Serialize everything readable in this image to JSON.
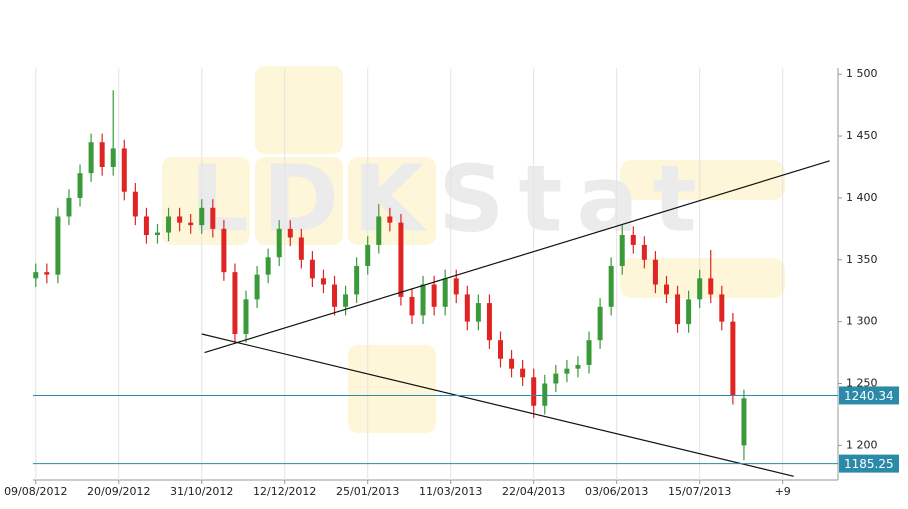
{
  "chart_data": {
    "type": "candlestick",
    "watermark": "LDKStat",
    "up_color": "#3a9a3a",
    "down_color": "#e02424",
    "grid": true,
    "xlim": [
      -1,
      290
    ],
    "ylim": [
      1172,
      1505
    ],
    "xticks": [
      {
        "value": 0,
        "label": "09/08/2012"
      },
      {
        "value": 30,
        "label": "20/09/2012"
      },
      {
        "value": 60,
        "label": "31/10/2012"
      },
      {
        "value": 90,
        "label": "12/12/2012"
      },
      {
        "value": 120,
        "label": "25/01/2013"
      },
      {
        "value": 150,
        "label": "11/03/2013"
      },
      {
        "value": 180,
        "label": "22/04/2013"
      },
      {
        "value": 210,
        "label": "03/06/2013"
      },
      {
        "value": 240,
        "label": "15/07/2013"
      },
      {
        "value": 270,
        "label": "+9"
      }
    ],
    "yticks": [
      {
        "value": 1200,
        "label": "1 200"
      },
      {
        "value": 1250,
        "label": "1 250"
      },
      {
        "value": 1300,
        "label": "1 300"
      },
      {
        "value": 1350,
        "label": "1 350"
      },
      {
        "value": 1400,
        "label": "1 400"
      },
      {
        "value": 1450,
        "label": "1 450"
      },
      {
        "value": 1500,
        "label": "1 500"
      }
    ],
    "x": [
      0,
      4,
      8,
      12,
      16,
      20,
      24,
      28,
      32,
      36,
      40,
      44,
      48,
      52,
      56,
      60,
      64,
      68,
      72,
      76,
      80,
      84,
      88,
      92,
      96,
      100,
      104,
      108,
      112,
      116,
      120,
      124,
      128,
      132,
      136,
      140,
      144,
      148,
      152,
      156,
      160,
      164,
      168,
      172,
      176,
      180,
      184,
      188,
      192,
      196,
      200,
      204,
      208,
      212,
      216,
      220,
      224,
      228,
      232,
      236,
      240,
      244,
      248,
      252,
      256
    ],
    "open": [
      1335,
      1340,
      1338,
      1385,
      1400,
      1420,
      1445,
      1425,
      1440,
      1405,
      1385,
      1370,
      1372,
      1385,
      1380,
      1378,
      1392,
      1375,
      1340,
      1290,
      1318,
      1338,
      1352,
      1375,
      1368,
      1350,
      1335,
      1330,
      1312,
      1322,
      1345,
      1362,
      1385,
      1380,
      1320,
      1305,
      1330,
      1312,
      1335,
      1322,
      1300,
      1315,
      1285,
      1270,
      1262,
      1255,
      1232,
      1250,
      1258,
      1262,
      1265,
      1285,
      1312,
      1345,
      1370,
      1362,
      1350,
      1330,
      1322,
      1298,
      1318,
      1335,
      1322,
      1300,
      1200
    ],
    "high": [
      1347,
      1347,
      1392,
      1407,
      1427,
      1452,
      1452,
      1487,
      1447,
      1412,
      1392,
      1379,
      1392,
      1392,
      1387,
      1399,
      1399,
      1382,
      1347,
      1325,
      1345,
      1359,
      1382,
      1382,
      1375,
      1357,
      1342,
      1337,
      1329,
      1352,
      1369,
      1395,
      1392,
      1387,
      1327,
      1337,
      1337,
      1342,
      1342,
      1329,
      1322,
      1322,
      1292,
      1277,
      1269,
      1262,
      1257,
      1265,
      1269,
      1272,
      1292,
      1319,
      1352,
      1378,
      1377,
      1369,
      1357,
      1337,
      1329,
      1325,
      1342,
      1358,
      1329,
      1307,
      1245
    ],
    "low": [
      1328,
      1331,
      1331,
      1378,
      1393,
      1413,
      1418,
      1418,
      1398,
      1378,
      1363,
      1363,
      1365,
      1373,
      1371,
      1371,
      1368,
      1333,
      1283,
      1283,
      1311,
      1331,
      1345,
      1361,
      1343,
      1328,
      1323,
      1305,
      1305,
      1315,
      1338,
      1355,
      1373,
      1313,
      1298,
      1298,
      1305,
      1305,
      1315,
      1293,
      1293,
      1278,
      1263,
      1255,
      1248,
      1222,
      1225,
      1243,
      1251,
      1255,
      1258,
      1278,
      1305,
      1338,
      1355,
      1343,
      1323,
      1315,
      1291,
      1291,
      1311,
      1315,
      1293,
      1233,
      1188
    ],
    "close": [
      1340,
      1338,
      1385,
      1400,
      1420,
      1445,
      1425,
      1440,
      1405,
      1385,
      1370,
      1372,
      1385,
      1380,
      1378,
      1392,
      1375,
      1340,
      1290,
      1318,
      1338,
      1352,
      1375,
      1368,
      1350,
      1335,
      1330,
      1312,
      1322,
      1345,
      1362,
      1385,
      1380,
      1320,
      1305,
      1330,
      1312,
      1335,
      1322,
      1300,
      1315,
      1285,
      1270,
      1262,
      1255,
      1232,
      1250,
      1258,
      1262,
      1265,
      1285,
      1312,
      1345,
      1370,
      1362,
      1350,
      1330,
      1322,
      1298,
      1318,
      1335,
      1322,
      1300,
      1240,
      1238
    ],
    "trendlines": [
      {
        "x": [
          61,
          287
        ],
        "y": [
          1275,
          1430
        ]
      },
      {
        "x": [
          60,
          274
        ],
        "y": [
          1290,
          1175
        ]
      }
    ],
    "levels": {
      "color": "#2a8aa8",
      "values": [
        1240.34,
        1185.25
      ]
    }
  }
}
